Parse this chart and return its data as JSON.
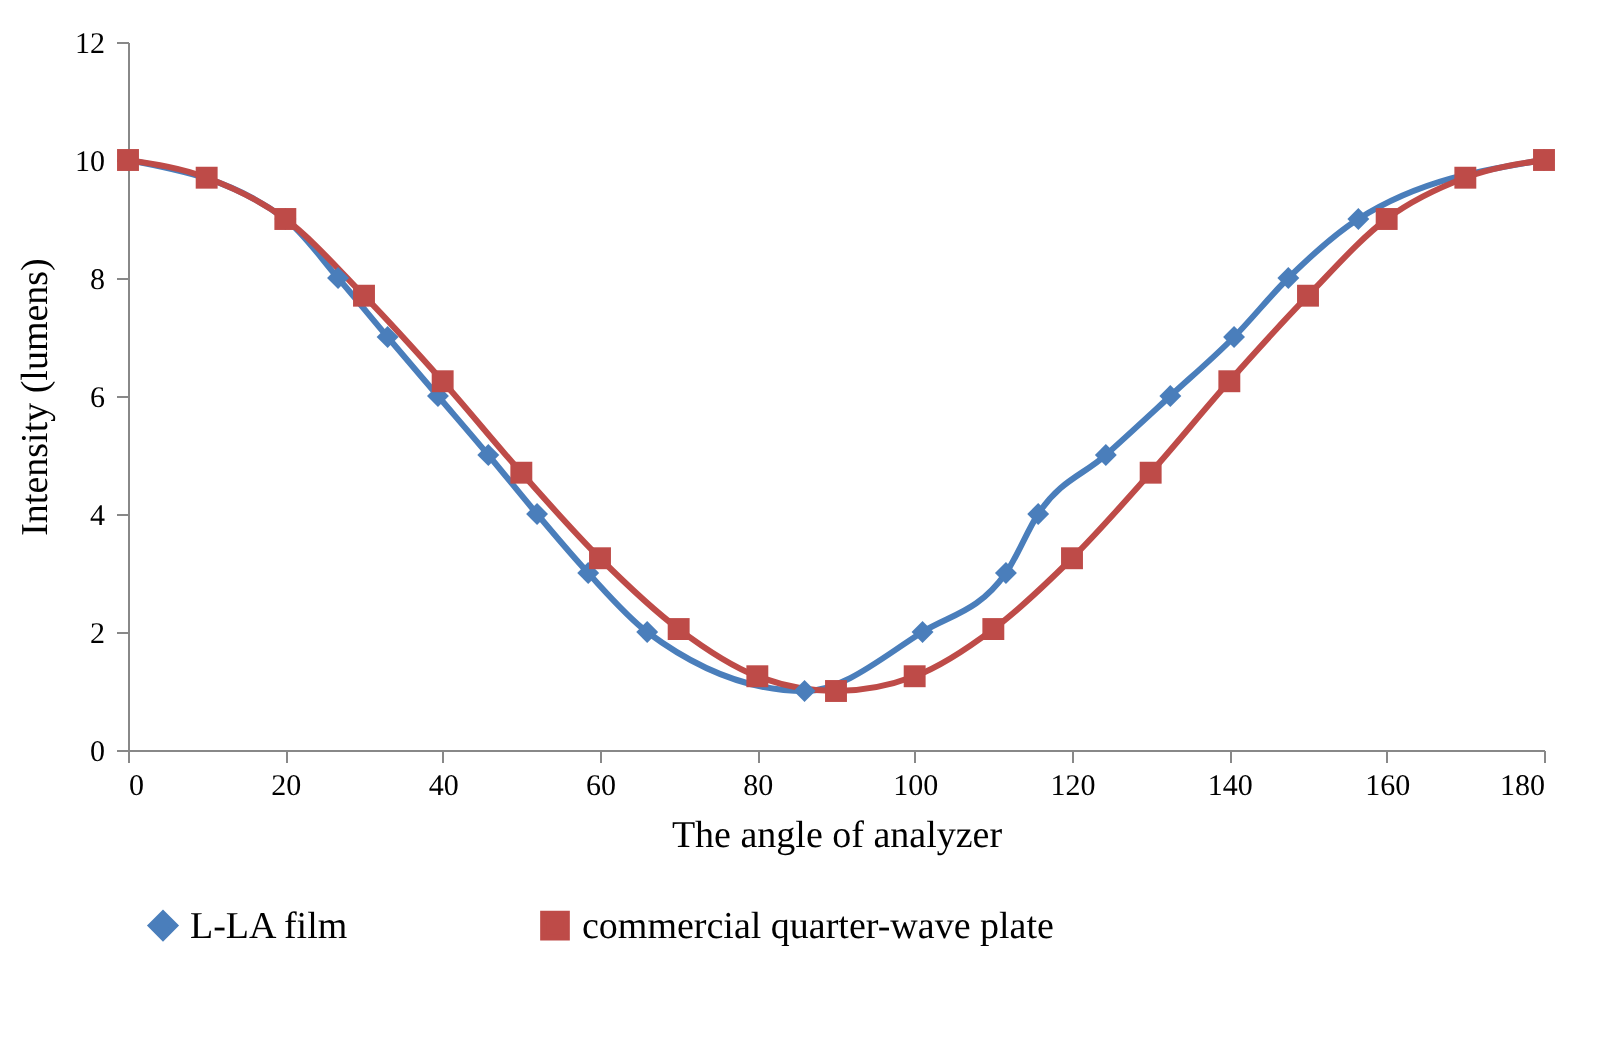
{
  "chart_data": {
    "type": "line",
    "xlabel": "The angle of analyzer",
    "ylabel": "Intensity  (lumens)",
    "xlim": [
      0,
      180
    ],
    "ylim": [
      0,
      12
    ],
    "xticks": [
      0,
      20,
      40,
      60,
      80,
      100,
      120,
      140,
      160,
      180
    ],
    "yticks": [
      0,
      2,
      4,
      6,
      8,
      10,
      12
    ],
    "grid": false,
    "legend": "bottom",
    "series": [
      {
        "name": "L-LA film",
        "color": "#4a7ebb",
        "marker": "diamond",
        "x": [
          0,
          20,
          26.7,
          33,
          39.4,
          45.8,
          52,
          58.5,
          66,
          86,
          101,
          111.6,
          115.7,
          124.3,
          132.5,
          140.6,
          147.5,
          156.4,
          180
        ],
        "values": [
          10,
          9,
          8,
          7,
          6,
          5,
          4,
          3,
          2,
          1,
          2,
          3,
          4,
          5,
          6,
          7,
          8,
          9,
          10
        ]
      },
      {
        "name": "commercial quarter-wave plate",
        "color": "#be4b48",
        "marker": "square",
        "x": [
          0,
          10,
          20,
          30,
          40,
          50,
          60,
          70,
          80,
          90,
          100,
          110,
          120,
          130,
          140,
          150,
          160,
          170,
          180
        ],
        "values": [
          10,
          9.7,
          9,
          7.7,
          6.25,
          4.7,
          3.25,
          2.05,
          1.25,
          1,
          1.25,
          2.05,
          3.25,
          4.7,
          6.25,
          7.7,
          9,
          9.7,
          10
        ]
      }
    ]
  }
}
